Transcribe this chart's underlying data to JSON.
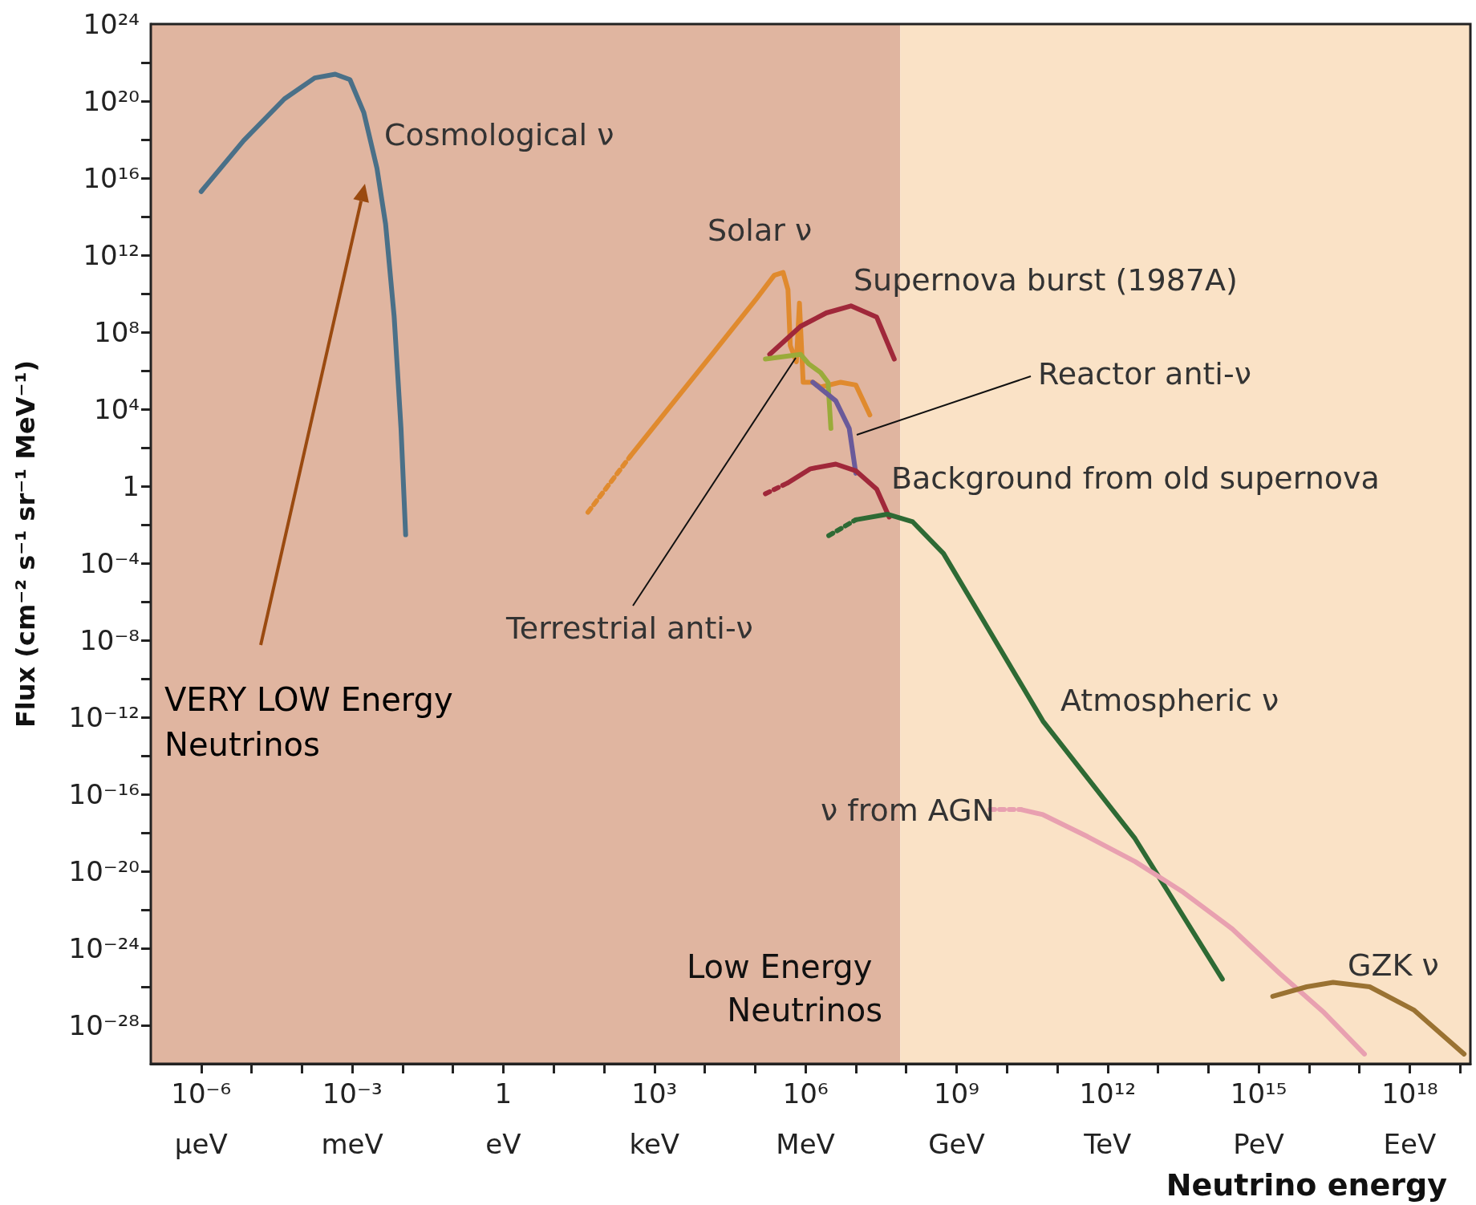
{
  "chart_data": {
    "type": "line",
    "xlabel": "Neutrino energy",
    "ylabel": "Flux (cm⁻² s⁻¹ sr⁻¹ MeV⁻¹)",
    "log": "xy",
    "grid": false,
    "legend": false,
    "marker": "none",
    "line_style": "solid",
    "xlim": [
      1e-07,
      1.6e+19
    ],
    "ylim": [
      1e-30,
      1e+24
    ],
    "xticks": [
      {
        "value": 1e-06,
        "label": "10⁻⁶"
      },
      {
        "value": 1e-05,
        "label": null
      },
      {
        "value": 0.0001,
        "label": null
      },
      {
        "value": 0.001,
        "label": "10⁻³"
      },
      {
        "value": 0.01,
        "label": null
      },
      {
        "value": 0.1,
        "label": null
      },
      {
        "value": 1,
        "label": "1"
      },
      {
        "value": 10,
        "label": null
      },
      {
        "value": 100,
        "label": null
      },
      {
        "value": 1000.0,
        "label": "10³"
      },
      {
        "value": 10000.0,
        "label": null
      },
      {
        "value": 100000.0,
        "label": null
      },
      {
        "value": 1000000.0,
        "label": "10⁶"
      },
      {
        "value": 10000000.0,
        "label": null
      },
      {
        "value": 100000000.0,
        "label": null
      },
      {
        "value": 1000000000.0,
        "label": "10⁹"
      },
      {
        "value": 10000000000.0,
        "label": null
      },
      {
        "value": 100000000000.0,
        "label": null
      },
      {
        "value": 1000000000000.0,
        "label": "10¹²"
      },
      {
        "value": 10000000000000.0,
        "label": null
      },
      {
        "value": 100000000000000.0,
        "label": null
      },
      {
        "value": 1000000000000000.0,
        "label": "10¹⁵"
      },
      {
        "value": 1e+16,
        "label": null
      },
      {
        "value": 1e+17,
        "label": null
      },
      {
        "value": 1e+18,
        "label": "10¹⁸"
      },
      {
        "value": 1e+19,
        "label": null
      }
    ],
    "yticks": [
      {
        "value": 1e+24,
        "label": "10²⁴"
      },
      {
        "value": 1e+22,
        "label": null
      },
      {
        "value": 1e+20,
        "label": "10²⁰"
      },
      {
        "value": 1e+18,
        "label": null
      },
      {
        "value": 1e+16,
        "label": "10¹⁶"
      },
      {
        "value": 100000000000000.0,
        "label": null
      },
      {
        "value": 1000000000000.0,
        "label": "10¹²"
      },
      {
        "value": 10000000000.0,
        "label": null
      },
      {
        "value": 100000000.0,
        "label": "10⁸"
      },
      {
        "value": 1000000.0,
        "label": null
      },
      {
        "value": 10000.0,
        "label": "10⁴"
      },
      {
        "value": 100,
        "label": null
      },
      {
        "value": 1,
        "label": "1"
      },
      {
        "value": 0.01,
        "label": null
      },
      {
        "value": 0.0001,
        "label": "10⁻⁴"
      },
      {
        "value": 1e-06,
        "label": null
      },
      {
        "value": 1e-08,
        "label": "10⁻⁸"
      },
      {
        "value": 1e-10,
        "label": null
      },
      {
        "value": 1e-12,
        "label": "10⁻¹²"
      },
      {
        "value": 1e-14,
        "label": null
      },
      {
        "value": 1e-16,
        "label": "10⁻¹⁶"
      },
      {
        "value": 1e-18,
        "label": null
      },
      {
        "value": 1e-20,
        "label": "10⁻²⁰"
      },
      {
        "value": 1e-22,
        "label": null
      },
      {
        "value": 1e-24,
        "label": "10⁻²⁴"
      },
      {
        "value": 1e-26,
        "label": null
      },
      {
        "value": 1e-28,
        "label": "10⁻²⁸"
      }
    ],
    "bands": [
      {
        "axis": "x",
        "from": 1e-07,
        "to": 76000000.0,
        "label": "Low Energy Neutrinos",
        "color": "#e0b5a0"
      },
      {
        "axis": "x",
        "from": 76000000.0,
        "to": 1.6e+19,
        "color": "#fae2c6"
      }
    ],
    "annotations": [
      "VERY LOW Energy Neutrinos",
      "μeV",
      "meV",
      "eV",
      "keV",
      "MeV",
      "GeV",
      "TeV",
      "PeV",
      "EeV"
    ],
    "series": [
      {
        "name": "Cosmological ν",
        "color": "#4a7088",
        "x": [
          1e-06,
          7e-06,
          4.5e-05,
          0.00018,
          0.00046,
          0.0009,
          0.0017,
          0.0031,
          0.0046,
          0.0068,
          0.0093,
          0.0115
        ],
        "values": [
          2000000000000000.0,
          9e+17,
          1.3e+20,
          1.6e+21,
          2.5e+21,
          1.3e+21,
          2.5e+19,
          3.2e+16,
          40000000000000.0,
          630000000.0,
          1000.0,
          0.003
        ]
      },
      {
        "name": "Solar ν",
        "color": "#e08a2e",
        "x": [
          330,
          1800,
          14000,
          107000,
          240000,
          360000,
          450000,
          500000,
          660000,
          760000,
          900000,
          1400000,
          2000000,
          5000000,
          10000000.0,
          19000000.0
        ],
        "values": [
          35,
          9000.0,
          7000000.0,
          5600000000.0,
          90000000000.0,
          126000000000.0,
          16000000000.0,
          20000000.0,
          2900000.0,
          3200000000.0,
          250000.0,
          250000.0,
          140000.0,
          250000.0,
          180000.0,
          5000.0
        ]
      },
      {
        "name": "Supernova burst (1987A)",
        "color": "#a0283a",
        "x": [
          195000,
          800000,
          2600000,
          8000000,
          26000000.0,
          58000000.0
        ],
        "values": [
          7000000.0,
          200000000.0,
          1000000000.0,
          2300000000.0,
          600000000.0,
          4000000.0
        ]
      },
      {
        "name": "Terrestrial anti-ν",
        "color": "#9aab3a",
        "x": [
          160000,
          800000,
          1150000,
          2000000,
          2800000,
          3200000
        ],
        "values": [
          4000000.0,
          7000000.0,
          2300000.0,
          800000.0,
          250000.0,
          1000.0
        ]
      },
      {
        "name": "Reactor anti-ν",
        "color": "#6a5a9a",
        "x": [
          1400000,
          4000000,
          7400000,
          10000000.0
        ],
        "values": [
          250000.0,
          27000.0,
          1000.0,
          4.7
        ]
      },
      {
        "name": "Background from old supernova",
        "color": "#a0283a",
        "x": [
          450000,
          1260000,
          4000000,
          10000000.0,
          26000000.0,
          46000000.0
        ],
        "values": [
          1.5,
          8,
          14,
          6.3,
          0.7,
          0.025
        ]
      },
      {
        "name": "Atmospheric ν",
        "color": "#2e6a34",
        "x": [
          10000000.0,
          42000000.0,
          135000000.0,
          550000000.0,
          2000000000.0,
          52000000000.0,
          3500000000000.0,
          190000000000000.0
        ],
        "values": [
          0.018,
          0.035,
          0.014,
          0.00032,
          1.1e-06,
          6.3e-13,
          5e-19,
          2.5e-26
        ]
      },
      {
        "name": "ν from AGN",
        "color": "#e8a0b0",
        "x": [
          19000000000.0,
          52000000000.0,
          400000000000.0,
          3500000000000.0,
          32000000000000.0,
          300000000000000.0,
          2600000000000000.0,
          2e+16,
          1.26e+17
        ],
        "values": [
          1.6e-17,
          8.7e-18,
          6.3e-19,
          3.2e-20,
          8e-22,
          1e-23,
          5e-26,
          4.5e-28,
          3.2e-30
        ]
      },
      {
        "name": "GZK ν",
        "color": "#9a7232",
        "x": [
          1900000000000000.0,
          9000000000000000.0,
          3e+16,
          1.6e+17,
          1.2e+18,
          1.2e+19
        ],
        "values": [
          3.2e-27,
          1e-26,
          1.7e-26,
          1e-26,
          6.3e-28,
          3.2e-30
        ]
      },
      {
        "color": "#e08a2e",
        "line_style": "dotted",
        "x": [
          48,
          330
        ],
        "values": [
          0.044,
          35
        ]
      },
      {
        "color": "#a0283a",
        "line_style": "dotted",
        "x": [
          160000,
          450000
        ],
        "values": [
          0.4,
          1.5
        ]
      },
      {
        "color": "#2e6a34",
        "line_style": "dotted",
        "x": [
          2900000,
          10000000.0
        ],
        "values": [
          0.0027,
          0.018
        ]
      },
      {
        "color": "#e8a0b0",
        "line_style": "dotted",
        "x": [
          4600000000.0,
          19000000000.0
        ],
        "values": [
          1.6e-17,
          1.6e-17
        ]
      }
    ]
  }
}
